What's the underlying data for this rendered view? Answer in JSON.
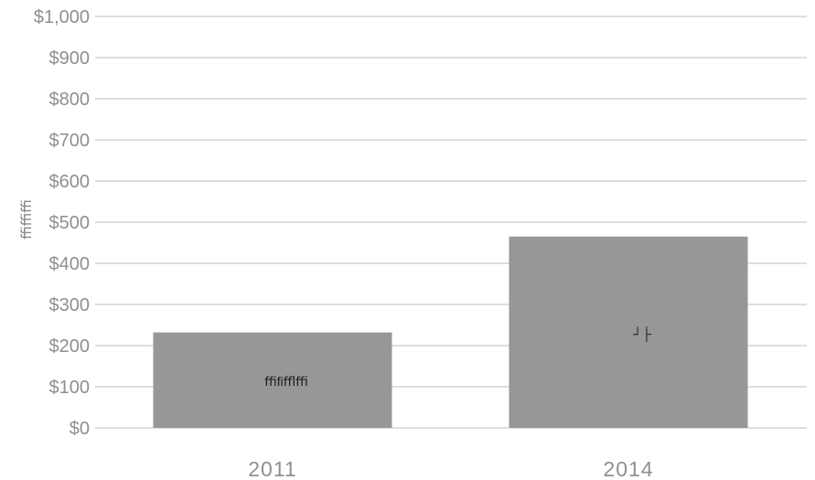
{
  "chart_data": {
    "type": "bar",
    "categories": [
      "2011",
      "2014"
    ],
    "values": [
      232,
      465
    ],
    "title": "",
    "xlabel": "",
    "ylabel": "ﬃﬃﬃ",
    "ylim": [
      0,
      1000
    ],
    "yticks": [
      "$0",
      "$100",
      "$200",
      "$300",
      "$400",
      "$500",
      "$600",
      "$700",
      "$800",
      "$900",
      "$1,000"
    ],
    "data_labels": [
      "ﬃﬁﬄﬃ",
      "┘├"
    ],
    "grid": true,
    "legend": "none",
    "colors": {
      "bar": "#979797",
      "grid": "#bdbdbd",
      "text": "#8f8f8f"
    }
  }
}
